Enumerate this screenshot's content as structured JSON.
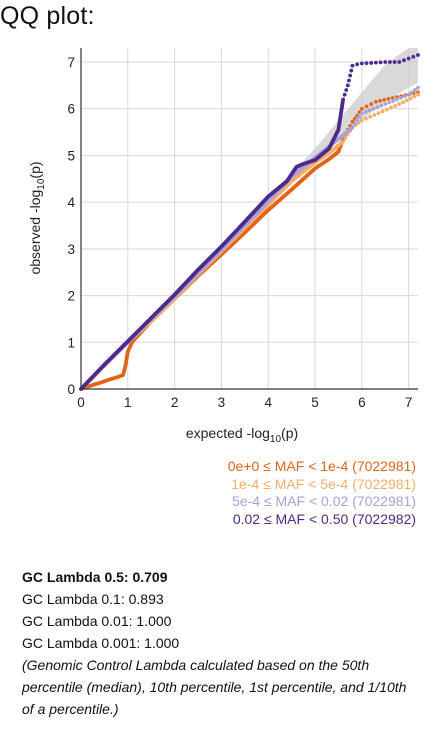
{
  "title": "QQ plot:",
  "chart_data": {
    "type": "scatter",
    "xlabel_main": "expected -log",
    "xlabel_sub": "10",
    "xlabel_tail": "(p)",
    "ylabel_main": "observed -log",
    "ylabel_sub": "10",
    "ylabel_tail": "(p)",
    "xlim": [
      0,
      7.2
    ],
    "ylim": [
      0,
      7.3
    ],
    "x_ticks": [
      0,
      1,
      2,
      3,
      4,
      5,
      6,
      7
    ],
    "y_ticks": [
      0,
      1,
      2,
      3,
      4,
      5,
      6,
      7
    ],
    "x_tick_labels": [
      "0",
      "1",
      "2",
      "3",
      "4",
      "5",
      "6",
      "7"
    ],
    "y_tick_labels": [
      "0",
      "1",
      "2",
      "3",
      "4",
      "5",
      "6",
      "7"
    ],
    "grid": true,
    "confidence_band": {
      "x": [
        4.0,
        4.5,
        5.0,
        5.5,
        6.0,
        6.5,
        7.0,
        7.2
      ],
      "lower": [
        3.95,
        4.42,
        4.88,
        5.32,
        5.75,
        6.15,
        6.45,
        6.55
      ],
      "upper": [
        4.05,
        4.6,
        5.15,
        5.75,
        6.35,
        6.95,
        7.3,
        7.3
      ],
      "color": "#cccccc"
    },
    "series": [
      {
        "name": "0e+0 ≤ MAF < 1e-4 (7022981)",
        "color": "#e2641a",
        "x": [
          0,
          0.2,
          0.4,
          0.6,
          0.8,
          0.9,
          0.95,
          1.0,
          1.1,
          1.5,
          2.0,
          2.5,
          3.0,
          3.5,
          4.0,
          4.5,
          5.0,
          5.3,
          5.5,
          5.6,
          5.7,
          5.8,
          5.9,
          6.0,
          6.3,
          7.2
        ],
        "y": [
          0,
          0.07,
          0.13,
          0.2,
          0.26,
          0.3,
          0.5,
          0.8,
          1.02,
          1.45,
          1.93,
          2.42,
          2.88,
          3.35,
          3.83,
          4.27,
          4.72,
          4.92,
          5.08,
          5.35,
          5.55,
          5.72,
          5.85,
          6.0,
          6.15,
          6.35
        ]
      },
      {
        "name": "1e-4 ≤ MAF < 5e-4 (7022981)",
        "color": "#f7ad6a",
        "x": [
          0,
          0.5,
          1.0,
          1.5,
          2.0,
          2.5,
          3.0,
          3.5,
          4.0,
          4.5,
          5.0,
          5.3,
          5.6,
          5.7,
          5.8,
          6.0,
          6.8,
          7.2
        ],
        "y": [
          0,
          0.5,
          1.0,
          1.45,
          1.93,
          2.45,
          2.95,
          3.45,
          3.95,
          4.45,
          4.85,
          5.05,
          5.3,
          5.45,
          5.6,
          5.75,
          6.1,
          6.3
        ]
      },
      {
        "name": "5e-4 ≤ MAF < 0.02 (7022981)",
        "color": "#a7a2d8",
        "x": [
          0,
          0.5,
          1.0,
          1.5,
          2.0,
          2.5,
          3.0,
          3.5,
          4.0,
          4.5,
          5.0,
          5.5,
          5.8,
          6.0,
          6.5,
          7.0,
          7.2
        ],
        "y": [
          0,
          0.52,
          1.0,
          1.5,
          1.98,
          2.48,
          2.98,
          3.5,
          4.02,
          4.55,
          4.95,
          5.35,
          5.6,
          5.9,
          6.1,
          6.3,
          6.45
        ]
      },
      {
        "name": "0.02 ≤ MAF < 0.50 (7022982)",
        "color": "#4c2a8e",
        "x": [
          0,
          0.5,
          1.0,
          1.5,
          2.0,
          2.5,
          3.0,
          3.5,
          4.0,
          4.4,
          4.6,
          4.7,
          5.0,
          5.3,
          5.5,
          5.6,
          5.7,
          5.8,
          5.9,
          6.0,
          6.2,
          6.5,
          6.8,
          7.2
        ],
        "y": [
          0,
          0.52,
          1.02,
          1.52,
          2.02,
          2.55,
          3.05,
          3.58,
          4.12,
          4.45,
          4.75,
          4.8,
          4.9,
          5.15,
          5.55,
          6.2,
          6.5,
          6.92,
          6.95,
          6.97,
          6.98,
          7.0,
          7.0,
          7.15
        ]
      }
    ]
  },
  "legend": [
    {
      "label": "0e+0 ≤ MAF < 1e-4 (7022981)",
      "color": "#e2641a"
    },
    {
      "label": "1e-4 ≤ MAF < 5e-4 (7022981)",
      "color": "#f7ad6a"
    },
    {
      "label": "5e-4 ≤ MAF < 0.02 (7022981)",
      "color": "#a7a2d8"
    },
    {
      "label": "0.02 ≤ MAF < 0.50 (7022982)",
      "color": "#4c2a8e"
    }
  ],
  "gc": {
    "lambda_05": "GC Lambda 0.5: 0.709",
    "lambda_01": "GC Lambda 0.1: 0.893",
    "lambda_001": "GC Lambda 0.01: 1.000",
    "lambda_0001": "GC Lambda 0.001: 1.000",
    "note": "(Genomic Control Lambda calculated based on the 50th percentile (median), 10th percentile, 1st percentile, and 1/10th of a percentile.)"
  }
}
